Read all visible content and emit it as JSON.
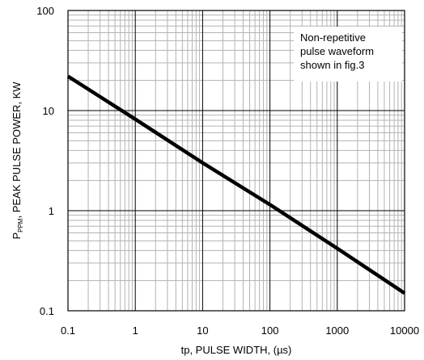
{
  "chart_data": {
    "type": "line",
    "xscale": "log",
    "yscale": "log",
    "xlim": [
      0.1,
      10000
    ],
    "ylim": [
      0.1,
      100
    ],
    "grid": true,
    "xticks": [
      "0.1",
      "1",
      "10",
      "100",
      "1000",
      "10000"
    ],
    "yticks": [
      "0.1",
      "1",
      "10",
      "100"
    ],
    "xlabel": "tp, PULSE WIDTH, (µs)",
    "ylabel": {
      "prefix": "P",
      "subscript": "PPM",
      "suffix": ", PEAK PULSE POWER, KW"
    },
    "annotation": [
      "Non-repetitive",
      "pulse waveform",
      "shown in fig.3"
    ],
    "series": [
      {
        "x": [
          0.1,
          1,
          10,
          100,
          1000,
          10000
        ],
        "y": [
          22,
          8.2,
          3.0,
          1.15,
          0.42,
          0.15
        ],
        "color": "#000000"
      }
    ]
  }
}
